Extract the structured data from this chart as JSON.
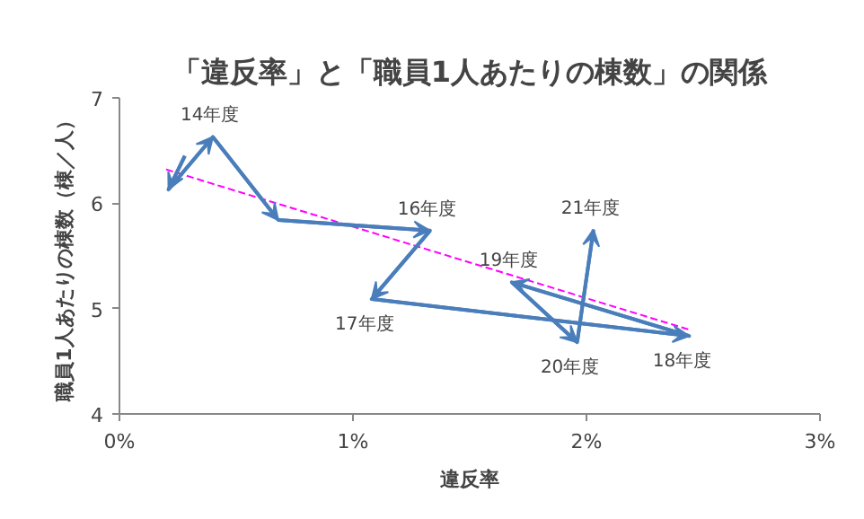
{
  "chart_data": {
    "type": "line",
    "title": "「違反率」と「職員1人あたりの棟数」の関係",
    "xlabel": "違反率",
    "ylabel": "職員1人あたりの棟数（棟／人）",
    "xlim": [
      0,
      3
    ],
    "xticks": [
      {
        "value": 0,
        "label": "0%"
      },
      {
        "value": 1,
        "label": "1%"
      },
      {
        "value": 2,
        "label": "2%"
      },
      {
        "value": 3,
        "label": "3%"
      }
    ],
    "ylim": [
      4,
      7
    ],
    "yticks": [
      4,
      5,
      6,
      7
    ],
    "grid": false,
    "marker": "none",
    "series": [
      {
        "color": "#4a7ebb",
        "x": [
          0.28,
          0.21,
          0.4,
          0.68,
          1.33,
          1.08,
          2.44,
          1.68,
          1.96,
          2.03
        ],
        "values": [
          6.45,
          6.13,
          6.63,
          5.84,
          5.74,
          5.09,
          4.74,
          5.25,
          4.68,
          5.75
        ]
      },
      {
        "type": "line",
        "line_style": "dashed",
        "color": "#ff00ff",
        "x": [
          0.2,
          2.44
        ],
        "values": [
          6.32,
          4.8
        ]
      }
    ],
    "annotations": [
      {
        "text": "14年度",
        "x": 0.4,
        "y": 6.63
      },
      {
        "text": "16年度",
        "x": 1.33,
        "y": 5.74
      },
      {
        "text": "17年度",
        "x": 1.08,
        "y": 5.09
      },
      {
        "text": "18年度",
        "x": 2.44,
        "y": 4.74
      },
      {
        "text": "19年度",
        "x": 1.68,
        "y": 5.25
      },
      {
        "text": "20年度",
        "x": 1.96,
        "y": 4.68
      },
      {
        "text": "21年度",
        "x": 2.03,
        "y": 5.75
      }
    ]
  }
}
